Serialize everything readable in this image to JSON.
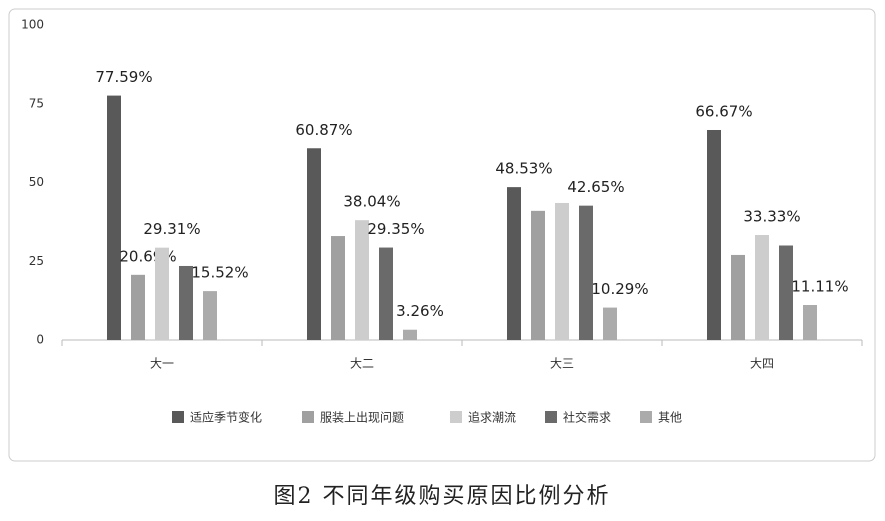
{
  "chart_data": {
    "type": "bar",
    "caption": "图2 不同年级购买原因比例分析",
    "categories": [
      "大一",
      "大二",
      "大三",
      "大四"
    ],
    "series": [
      {
        "name": "适应季节变化",
        "color": "#595959",
        "values": [
          77.59,
          60.87,
          48.53,
          66.67
        ],
        "value_labels": [
          "77.59%",
          "60.87%",
          "48.53%",
          "66.67%"
        ]
      },
      {
        "name": "服装上出现问题",
        "color": "#a0a0a0",
        "values": [
          20.69,
          33,
          41,
          27
        ],
        "value_labels": [
          "20.69%",
          null,
          null,
          null
        ]
      },
      {
        "name": "追求潮流",
        "color": "#cdcdcd",
        "values": [
          29.31,
          38.04,
          43.5,
          33.33
        ],
        "value_labels": [
          "29.31%",
          "38.04%",
          null,
          "33.33%"
        ]
      },
      {
        "name": "社交需求",
        "color": "#6a6a6a",
        "values": [
          23.5,
          29.35,
          42.65,
          30
        ],
        "value_labels": [
          null,
          "29.35%",
          "42.65%",
          null
        ]
      },
      {
        "name": "其他",
        "color": "#ababab",
        "values": [
          15.52,
          3.26,
          10.29,
          11.11
        ],
        "value_labels": [
          "15.52%",
          "3.26%",
          "10.29%",
          "11.11%"
        ]
      }
    ],
    "ylim": [
      0,
      100
    ],
    "yticks": [
      0,
      25,
      50,
      75,
      100
    ],
    "grid": false,
    "legend": "bottom"
  }
}
